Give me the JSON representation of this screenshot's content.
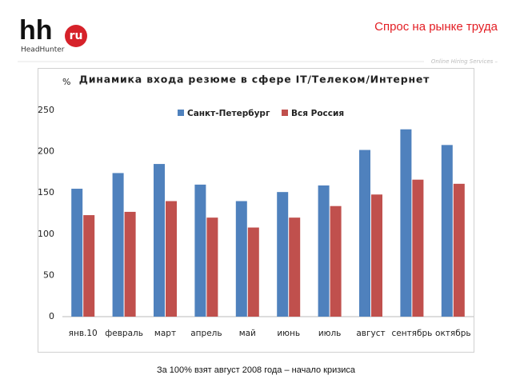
{
  "header": {
    "logo": "hh",
    "logo_badge": "ru",
    "brand": "HeadHunter",
    "title": "Спрос на рынке труда",
    "tagline": "Online Hiring Services –"
  },
  "footnote": "За 100% взят август 2008 года – начало кризиса",
  "chart_data": {
    "type": "bar",
    "title": "Динамика входа резюме в сфере IT/Телеком/Интернет",
    "y_label": "%",
    "categories": [
      "янв.10",
      "февраль",
      "март",
      "апрель",
      "май",
      "июнь",
      "июль",
      "август",
      "сентябрь",
      "октябрь"
    ],
    "series": [
      {
        "name": "Санкт-Петербург",
        "color": "#4f81bd",
        "values": [
          155,
          174,
          185,
          160,
          140,
          151,
          159,
          202,
          227,
          208
        ]
      },
      {
        "name": "Вся Россия",
        "color": "#c0504d",
        "values": [
          123,
          127,
          140,
          120,
          108,
          120,
          134,
          148,
          166,
          161
        ]
      }
    ],
    "ylim": [
      0,
      250
    ],
    "yticks": [
      0,
      50,
      100,
      150,
      200,
      250
    ],
    "grid": false
  }
}
